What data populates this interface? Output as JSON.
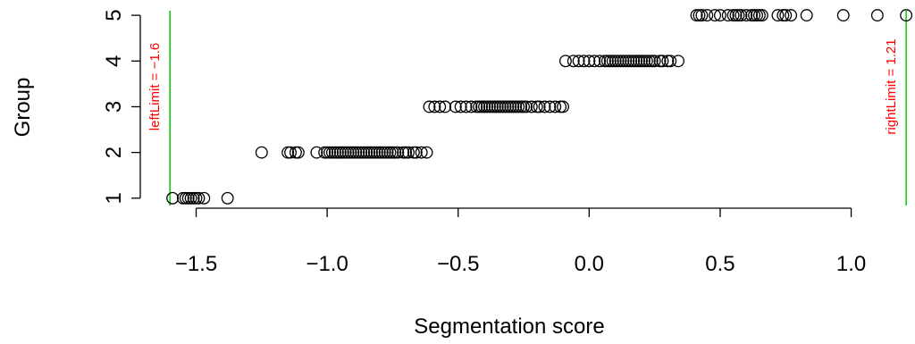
{
  "chart_data": {
    "type": "scatter",
    "title": "",
    "xlabel": "Segmentation score",
    "ylabel": "Group",
    "xlim": [
      -1.72,
      1.23
    ],
    "ylim": [
      0.84,
      5.1
    ],
    "x_ticks": [
      -1.5,
      -1.0,
      -0.5,
      0.0,
      0.5,
      1.0
    ],
    "x_tick_labels": [
      "−1.5",
      "−1.0",
      "−0.5",
      "0.0",
      "0.5",
      "1.0"
    ],
    "y_ticks": [
      1,
      2,
      3,
      4,
      5
    ],
    "y_tick_labels": [
      "1",
      "2",
      "3",
      "4",
      "5"
    ],
    "grid": false,
    "point_color": "#000000",
    "limit_color": "#00cc00",
    "limit_label_color": "#ff0000",
    "limits": [
      {
        "name": "leftLimit",
        "value": -1.6,
        "label": "leftLimit = −1.6",
        "side": "left"
      },
      {
        "name": "rightLimit",
        "value": 1.21,
        "label": "rightLimit = 1.21",
        "side": "right"
      }
    ],
    "series": [
      {
        "group": 1,
        "x": [
          -1.59,
          -1.55,
          -1.54,
          -1.53,
          -1.52,
          -1.51,
          -1.5,
          -1.49,
          -1.47,
          -1.38
        ]
      },
      {
        "group": 2,
        "x": [
          -1.25,
          -1.15,
          -1.14,
          -1.12,
          -1.11,
          -1.04,
          -1.01,
          -1.0,
          -0.99,
          -0.98,
          -0.97,
          -0.96,
          -0.95,
          -0.94,
          -0.93,
          -0.92,
          -0.91,
          -0.9,
          -0.89,
          -0.88,
          -0.87,
          -0.86,
          -0.85,
          -0.84,
          -0.83,
          -0.82,
          -0.81,
          -0.8,
          -0.79,
          -0.78,
          -0.77,
          -0.76,
          -0.75,
          -0.74,
          -0.73,
          -0.71,
          -0.7,
          -0.69,
          -0.67,
          -0.66,
          -0.64,
          -0.62
        ]
      },
      {
        "group": 3,
        "x": [
          -0.61,
          -0.59,
          -0.57,
          -0.55,
          -0.51,
          -0.49,
          -0.47,
          -0.45,
          -0.43,
          -0.42,
          -0.41,
          -0.4,
          -0.39,
          -0.38,
          -0.37,
          -0.36,
          -0.35,
          -0.34,
          -0.33,
          -0.32,
          -0.31,
          -0.3,
          -0.29,
          -0.28,
          -0.27,
          -0.26,
          -0.25,
          -0.24,
          -0.22,
          -0.2,
          -0.19,
          -0.17,
          -0.15,
          -0.13,
          -0.11,
          -0.1
        ]
      },
      {
        "group": 4,
        "x": [
          -0.09,
          -0.06,
          -0.04,
          -0.02,
          0.0,
          0.02,
          0.04,
          0.06,
          0.07,
          0.08,
          0.09,
          0.1,
          0.11,
          0.12,
          0.13,
          0.14,
          0.15,
          0.16,
          0.17,
          0.18,
          0.19,
          0.2,
          0.21,
          0.22,
          0.23,
          0.24,
          0.25,
          0.27,
          0.28,
          0.3,
          0.31,
          0.34
        ]
      },
      {
        "group": 5,
        "x": [
          0.41,
          0.42,
          0.43,
          0.45,
          0.48,
          0.5,
          0.53,
          0.55,
          0.56,
          0.57,
          0.58,
          0.6,
          0.62,
          0.63,
          0.64,
          0.65,
          0.66,
          0.72,
          0.74,
          0.75,
          0.77,
          0.83,
          0.97,
          1.1,
          1.21
        ]
      }
    ]
  }
}
